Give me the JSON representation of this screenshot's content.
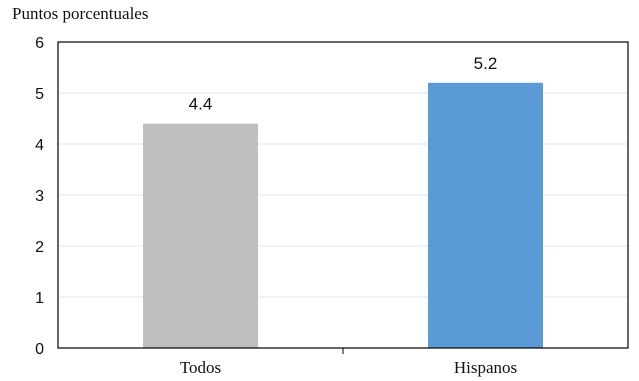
{
  "chart_data": {
    "type": "bar",
    "title": "",
    "ylabel": "Puntos porcentuales",
    "xlabel": "",
    "categories": [
      "Todos",
      "Hispanos"
    ],
    "values": [
      4.4,
      5.2
    ],
    "data_labels": [
      "4.4",
      "5.2"
    ],
    "colors": [
      "#bfbfbf",
      "#5b9bd5"
    ],
    "ylim": [
      0,
      6
    ],
    "yticks": [
      "0",
      "1",
      "2",
      "3",
      "4",
      "5",
      "6"
    ],
    "grid": true,
    "legend": "none"
  }
}
